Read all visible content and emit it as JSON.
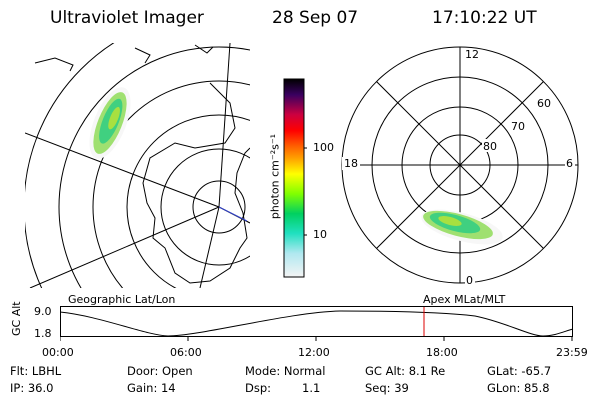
{
  "header": {
    "title": "Ultraviolet Imager",
    "date": "28 Sep 07",
    "time": "17:10:22 UT"
  },
  "colorbar": {
    "label": "photon cm⁻²s⁻¹",
    "ticks": [
      "100",
      "10"
    ]
  },
  "polar_plot": {
    "mlt_labels": [
      "12",
      "18",
      "6",
      "0"
    ],
    "mlat_labels": [
      "60",
      "70",
      "80"
    ]
  },
  "panel_labels": {
    "geographic": "Geographic Lat/Lon",
    "apex": "Apex MLat/MLT"
  },
  "altitude_plot": {
    "axis_label": "GC Alt",
    "y_ticks": [
      "9.0",
      "1.8"
    ],
    "x_ticks": [
      "00:00",
      "06:00",
      "12:00",
      "18:00",
      "23:59"
    ],
    "marker_color": "#dd0000"
  },
  "info": {
    "flt": "Flt: LBHL",
    "ip": "IP: 36.0",
    "door": "Door: Open",
    "gain": "Gain: 14",
    "mode": "Mode: Normal",
    "dsp": "Dsp:",
    "dsp_value": "1.1",
    "gc_alt": "GC Alt: 8.1 Re",
    "seq": "Seq: 39",
    "glat": "GLat: -65.7",
    "glon": "GLon: 85.8"
  }
}
